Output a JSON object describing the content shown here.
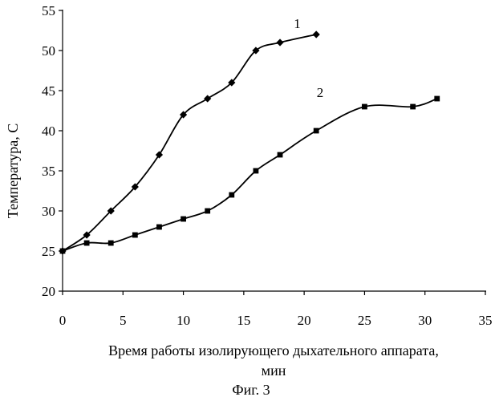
{
  "chart_data": {
    "type": "line",
    "xlabel_line1": "Время работы изолирующего дыхательного аппарата,",
    "xlabel_line2": "мин",
    "ylabel": "Температура, С",
    "caption": "Фиг. 3",
    "xlim": [
      0,
      35
    ],
    "ylim": [
      20,
      55
    ],
    "xticks": [
      "0",
      "5",
      "10",
      "15",
      "20",
      "25",
      "30",
      "35"
    ],
    "yticks": [
      "20",
      "25",
      "30",
      "35",
      "40",
      "45",
      "50",
      "55"
    ],
    "grid": false,
    "series": [
      {
        "name": "1",
        "marker": "diamond",
        "points": [
          [
            0,
            25
          ],
          [
            2,
            27
          ],
          [
            4,
            30
          ],
          [
            6,
            33
          ],
          [
            8,
            37
          ],
          [
            10,
            42
          ],
          [
            12,
            44
          ],
          [
            14,
            46
          ],
          [
            16,
            50
          ],
          [
            18,
            51
          ],
          [
            21,
            52
          ]
        ]
      },
      {
        "name": "2",
        "marker": "square",
        "points": [
          [
            0,
            25
          ],
          [
            2,
            26
          ],
          [
            4,
            26
          ],
          [
            6,
            27
          ],
          [
            8,
            28
          ],
          [
            10,
            29
          ],
          [
            12,
            30
          ],
          [
            14,
            32
          ],
          [
            16,
            35
          ],
          [
            18,
            37
          ],
          [
            21,
            40
          ],
          [
            25,
            43
          ],
          [
            29,
            43
          ],
          [
            31,
            44
          ]
        ]
      }
    ]
  }
}
